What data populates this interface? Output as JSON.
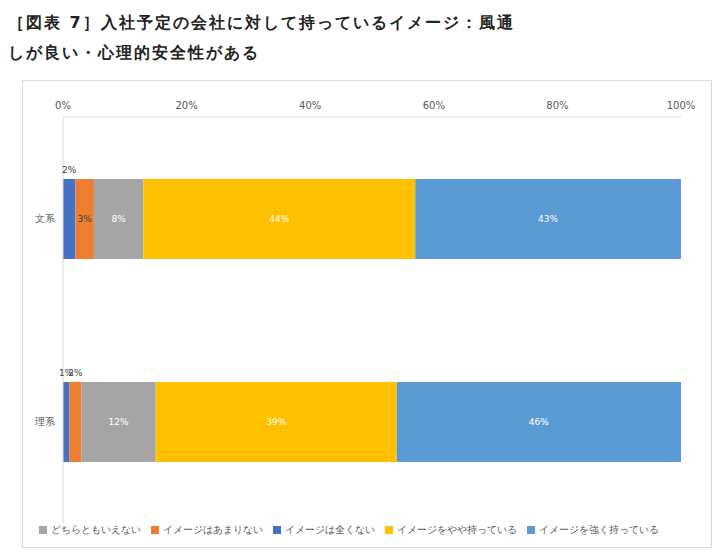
{
  "chart_data": {
    "type": "bar",
    "title": "［図表 7］入社予定の会社に対して持っているイメージ：風通しが良い・心理的安全性がある",
    "orientation": "horizontal",
    "stacked": true,
    "data_labels": true,
    "grid": false,
    "legend": "bottom",
    "categories": [
      "文系",
      "理系"
    ],
    "xlim": [
      0,
      100
    ],
    "xticks": [
      {
        "value": 0,
        "label": "0%"
      },
      {
        "value": 20,
        "label": "20%"
      },
      {
        "value": 40,
        "label": "40%"
      },
      {
        "value": 60,
        "label": "60%"
      },
      {
        "value": 80,
        "label": "80%"
      },
      {
        "value": 100,
        "label": "100%"
      }
    ],
    "series": [
      {
        "name": "イメージは全くない",
        "color": "#4472c4",
        "values": [
          2,
          1
        ],
        "value_labels": [
          "2%",
          "1%"
        ]
      },
      {
        "name": "イメージはあまりない",
        "color": "#ed7d31",
        "values": [
          3,
          2
        ],
        "value_labels": [
          "3%",
          "2%"
        ]
      },
      {
        "name": "どちらともいえない",
        "color": "#a5a5a5",
        "values": [
          8,
          12
        ],
        "value_labels": [
          "8%",
          "12%"
        ]
      },
      {
        "name": "イメージをやや持っている",
        "color": "#ffc000",
        "values": [
          44,
          39
        ],
        "value_labels": [
          "44%",
          "39%"
        ]
      },
      {
        "name": "イメージを強く持っている",
        "color": "#5b9bd5",
        "values": [
          43,
          46
        ],
        "value_labels": [
          "43%",
          "46%"
        ]
      }
    ]
  }
}
